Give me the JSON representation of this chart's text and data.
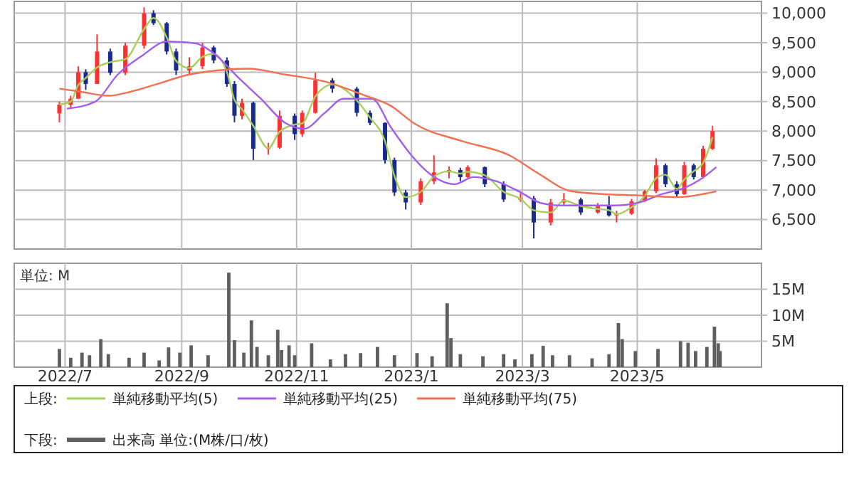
{
  "chart_data": [
    {
      "type": "candlestick",
      "xlim": [
        "2022-06-04",
        "2023-07-06"
      ],
      "ylim": [
        6000,
        10200
      ],
      "xticks": [
        {
          "value": "2022-07-01",
          "label": null
        },
        {
          "value": "2022-09-01",
          "label": null
        },
        {
          "value": "2022-11-01",
          "label": null
        },
        {
          "value": "2023-01-01",
          "label": null
        },
        {
          "value": "2023-03-01",
          "label": null
        },
        {
          "value": "2023-05-01",
          "label": null
        }
      ],
      "yticks": [
        {
          "value": 6500,
          "label": "6,500"
        },
        {
          "value": 7000,
          "label": "7,000"
        },
        {
          "value": 7500,
          "label": "7,500"
        },
        {
          "value": 8000,
          "label": "8,000"
        },
        {
          "value": 8500,
          "label": "8,500"
        },
        {
          "value": 9000,
          "label": "9,000"
        },
        {
          "value": 9500,
          "label": "9,500"
        },
        {
          "value": 10000,
          "label": "10,000"
        }
      ],
      "tick_labels": "y",
      "grid": true,
      "legend": "bottom",
      "legend_title": "上段:",
      "series": [
        {
          "color": "#ff3030",
          "x": [
            "2022-06-28",
            "2022-07-04",
            "2022-07-08",
            "2022-07-18",
            "2022-08-02",
            "2022-08-12",
            "2022-09-05",
            "2022-09-12",
            "2022-10-03",
            "2022-10-17",
            "2022-10-23",
            "2022-11-04",
            "2022-11-11",
            "2023-01-06",
            "2023-01-13",
            "2023-01-21",
            "2023-01-31",
            "2023-02-28",
            "2023-03-16",
            "2023-03-23",
            "2023-04-10",
            "2023-04-20",
            "2023-04-28",
            "2023-05-05",
            "2023-05-11",
            "2023-05-26",
            "2023-06-05",
            "2023-06-10"
          ],
          "ohlc": [
            [
              8300,
              8500,
              8150,
              8450
            ],
            [
              8450,
              8600,
              8400,
              8550
            ],
            [
              8550,
              9100,
              8550,
              9000
            ],
            [
              8800,
              9640,
              8800,
              9350
            ],
            [
              8990,
              9500,
              8950,
              9450
            ],
            [
              9450,
              10100,
              9400,
              10000
            ],
            [
              9030,
              9250,
              8950,
              9100
            ],
            [
              9100,
              9500,
              9050,
              9420
            ],
            [
              8260,
              8550,
              8200,
              8480
            ],
            [
              7700,
              7800,
              7600,
              7720
            ],
            [
              7720,
              8350,
              7700,
              8260
            ],
            [
              7950,
              8350,
              7900,
              8310
            ],
            [
              8310,
              8990,
              8300,
              8860
            ],
            [
              6790,
              7200,
              6750,
              7150
            ],
            [
              7150,
              7590,
              7100,
              7300
            ],
            [
              7300,
              7400,
              7200,
              7340
            ],
            [
              7220,
              7420,
              7200,
              7390
            ],
            [
              6840,
              6950,
              6800,
              6860
            ],
            [
              6450,
              6850,
              6400,
              6790
            ],
            [
              6790,
              6950,
              6750,
              6840
            ],
            [
              6620,
              6780,
              6600,
              6740
            ],
            [
              6570,
              6650,
              6450,
              6600
            ],
            [
              6600,
              6850,
              6580,
              6810
            ],
            [
              6810,
              7000,
              6800,
              6980
            ],
            [
              6980,
              7540,
              6950,
              7420
            ],
            [
              6930,
              7480,
              6920,
              7420
            ],
            [
              7220,
              7750,
              7200,
              7700
            ],
            [
              7700,
              8090,
              7680,
              8000
            ]
          ]
        },
        {
          "color": "#1a2a8a",
          "x": [
            "2022-07-12",
            "2022-07-25",
            "2022-08-17",
            "2022-08-24",
            "2022-08-29",
            "2022-09-18",
            "2022-09-25",
            "2022-09-29",
            "2022-10-09",
            "2022-10-31",
            "2022-11-20",
            "2022-12-03",
            "2022-12-10",
            "2022-12-18",
            "2022-12-23",
            "2022-12-29",
            "2023-01-27",
            "2023-02-09",
            "2023-02-19",
            "2023-03-07",
            "2023-04-01",
            "2023-04-16",
            "2023-05-16",
            "2023-05-22",
            "2023-05-31"
          ],
          "ohlc": [
            [
              9000,
              9050,
              8700,
              8800
            ],
            [
              9350,
              9400,
              8950,
              8990
            ],
            [
              10000,
              10050,
              9800,
              9830
            ],
            [
              9830,
              9850,
              9300,
              9350
            ],
            [
              9350,
              9400,
              8950,
              9030
            ],
            [
              9420,
              9450,
              9150,
              9200
            ],
            [
              9200,
              9250,
              8750,
              8800
            ],
            [
              8800,
              8850,
              8150,
              8260
            ],
            [
              8480,
              8500,
              7510,
              7700
            ],
            [
              8260,
              8300,
              7850,
              7950
            ],
            [
              8860,
              8900,
              8650,
              8720
            ],
            [
              8720,
              8750,
              8250,
              8310
            ],
            [
              8310,
              8350,
              8100,
              8140
            ],
            [
              8140,
              8150,
              7450,
              7510
            ],
            [
              7510,
              7550,
              6900,
              6960
            ],
            [
              6960,
              7000,
              6670,
              6790
            ],
            [
              7340,
              7380,
              7150,
              7220
            ],
            [
              7390,
              7400,
              7050,
              7100
            ],
            [
              7100,
              7150,
              6800,
              6840
            ],
            [
              6860,
              6900,
              6180,
              6450
            ],
            [
              6840,
              6870,
              6580,
              6620
            ],
            [
              6740,
              6900,
              6550,
              6570
            ],
            [
              7420,
              7450,
              7050,
              7100
            ],
            [
              7100,
              7150,
              6880,
              6930
            ],
            [
              7420,
              7450,
              7180,
              7220
            ]
          ]
        },
        {
          "type": "line",
          "name": "単純移動平均(5)",
          "color": "#a6d05a",
          "x": [
            "2022-06-28",
            "2022-07-04",
            "2022-07-08",
            "2022-07-12",
            "2022-07-18",
            "2022-07-25",
            "2022-08-02",
            "2022-08-12",
            "2022-08-17",
            "2022-08-24",
            "2022-08-29",
            "2022-09-05",
            "2022-09-12",
            "2022-09-18",
            "2022-09-25",
            "2022-09-29",
            "2022-10-03",
            "2022-10-09",
            "2022-10-17",
            "2022-10-23",
            "2022-10-31",
            "2022-11-04",
            "2022-11-11",
            "2022-11-20",
            "2022-12-03",
            "2022-12-10",
            "2022-12-18",
            "2022-12-23",
            "2022-12-29",
            "2023-01-06",
            "2023-01-13",
            "2023-01-21",
            "2023-01-27",
            "2023-01-31",
            "2023-02-09",
            "2023-02-19",
            "2023-02-28",
            "2023-03-07",
            "2023-03-16",
            "2023-03-23",
            "2023-04-01",
            "2023-04-10",
            "2023-04-16",
            "2023-04-20",
            "2023-04-28",
            "2023-05-05",
            "2023-05-11",
            "2023-05-16",
            "2023-05-22",
            "2023-05-26",
            "2023-05-31",
            "2023-06-05",
            "2023-06-10"
          ],
          "values": [
            8450,
            8500,
            8780,
            8900,
            9080,
            9170,
            9220,
            9730,
            9920,
            9590,
            9190,
            9070,
            9260,
            9310,
            9000,
            8530,
            8370,
            8090,
            7710,
            7990,
            8110,
            8130,
            8590,
            8790,
            8520,
            8230,
            7830,
            7240,
            6880,
            6970,
            7230,
            7320,
            7280,
            7310,
            7250,
            6970,
            6850,
            6660,
            6620,
            6820,
            6730,
            6680,
            6660,
            6590,
            6710,
            6900,
            7200,
            7260,
            7020,
            7180,
            7320,
            7460,
            7900
          ]
        },
        {
          "type": "line",
          "name": "単純移動平均(25)",
          "color": "#a25df0",
          "x": [
            "2022-07-02",
            "2022-07-17",
            "2022-07-29",
            "2022-08-11",
            "2022-08-24",
            "2022-09-08",
            "2022-09-18",
            "2022-10-01",
            "2022-10-13",
            "2022-10-26",
            "2022-11-05",
            "2022-11-16",
            "2022-11-26",
            "2022-12-11",
            "2022-12-21",
            "2023-01-01",
            "2023-01-11",
            "2023-01-24",
            "2023-02-03",
            "2023-02-15",
            "2023-02-27",
            "2023-03-10",
            "2023-03-20",
            "2023-04-04",
            "2023-04-19",
            "2023-05-02",
            "2023-05-14",
            "2023-05-27",
            "2023-06-03",
            "2023-06-12"
          ],
          "values": [
            8380,
            8500,
            8960,
            9280,
            9520,
            9490,
            9320,
            8910,
            8550,
            8140,
            8040,
            8310,
            8550,
            8550,
            8070,
            7590,
            7270,
            7100,
            7220,
            7150,
            6980,
            6790,
            6740,
            6740,
            6740,
            6790,
            6930,
            7050,
            7170,
            7390
          ]
        },
        {
          "type": "line",
          "name": "単純移動平均(75)",
          "color": "#f07050",
          "x": [
            "2022-06-28",
            "2022-07-09",
            "2022-07-24",
            "2022-08-05",
            "2022-08-18",
            "2022-09-05",
            "2022-09-20",
            "2022-10-06",
            "2022-10-26",
            "2022-11-16",
            "2022-12-06",
            "2022-12-21",
            "2023-01-03",
            "2023-01-28",
            "2023-02-22",
            "2023-03-10",
            "2023-03-27",
            "2023-04-14",
            "2023-05-02",
            "2023-05-22",
            "2023-06-12"
          ],
          "values": [
            8720,
            8670,
            8600,
            8670,
            8790,
            8960,
            9030,
            9060,
            8960,
            8840,
            8620,
            8430,
            8120,
            7830,
            7590,
            7270,
            6980,
            6930,
            6910,
            6880,
            6980
          ]
        }
      ]
    },
    {
      "type": "bar",
      "xlim": [
        "2022-06-04",
        "2023-07-06"
      ],
      "ylim": [
        0,
        20
      ],
      "xticks": [
        {
          "value": "2022-07-01",
          "label": "2022/7"
        },
        {
          "value": "2022-09-01",
          "label": "2022/9"
        },
        {
          "value": "2022-11-01",
          "label": "2022/11"
        },
        {
          "value": "2023-01-01",
          "label": "2023/1"
        },
        {
          "value": "2023-03-01",
          "label": "2023/3"
        },
        {
          "value": "2023-05-01",
          "label": "2023/5"
        }
      ],
      "yticks": [
        {
          "value": 5,
          "label": "5M"
        },
        {
          "value": 10,
          "label": "10M"
        },
        {
          "value": 15,
          "label": "15M"
        }
      ],
      "grid": true,
      "legend": "bottom",
      "legend_title": "下段:",
      "annotations": [
        "単位: M"
      ],
      "series": [
        {
          "name": "出来高 単位:(M株/口/枚)",
          "color": "#5f5f5f",
          "x": [
            "2022-06-28",
            "2022-07-04",
            "2022-07-10",
            "2022-07-14",
            "2022-07-20",
            "2022-07-24",
            "2022-08-04",
            "2022-08-12",
            "2022-08-20",
            "2022-08-25",
            "2022-08-31",
            "2022-09-06",
            "2022-09-15",
            "2022-09-26",
            "2022-09-29",
            "2022-10-04",
            "2022-10-08",
            "2022-10-11",
            "2022-10-17",
            "2022-10-22",
            "2022-10-24",
            "2022-10-28",
            "2022-10-31",
            "2022-11-09",
            "2022-11-19",
            "2022-11-27",
            "2022-12-05",
            "2022-12-14",
            "2022-12-23",
            "2023-01-04",
            "2023-01-12",
            "2023-01-20",
            "2023-01-22",
            "2023-01-27",
            "2023-02-08",
            "2023-02-19",
            "2023-02-25",
            "2023-03-06",
            "2023-03-12",
            "2023-03-17",
            "2023-03-26",
            "2023-04-07",
            "2023-04-16",
            "2023-04-21",
            "2023-04-23",
            "2023-04-30",
            "2023-05-12",
            "2023-05-24",
            "2023-05-28",
            "2023-06-01",
            "2023-06-07",
            "2023-06-11",
            "2023-06-13",
            "2023-06-14"
          ],
          "values": [
            3.5,
            1.8,
            2.8,
            2.3,
            5.4,
            2.5,
            1.8,
            2.8,
            1.3,
            3.8,
            2.8,
            4.2,
            2.3,
            18.2,
            5.2,
            2.8,
            9.0,
            3.9,
            2.3,
            7.2,
            3.3,
            4.2,
            2.3,
            4.6,
            1.5,
            2.5,
            2.7,
            3.9,
            2.3,
            2.7,
            2.1,
            12.3,
            5.6,
            2.5,
            2.1,
            2.5,
            1.5,
            2.5,
            4.1,
            2.3,
            2.3,
            1.7,
            2.5,
            8.5,
            5.4,
            3.1,
            3.5,
            5.0,
            4.7,
            3.1,
            3.9,
            7.8,
            4.6,
            3.1
          ]
        }
      ]
    }
  ]
}
